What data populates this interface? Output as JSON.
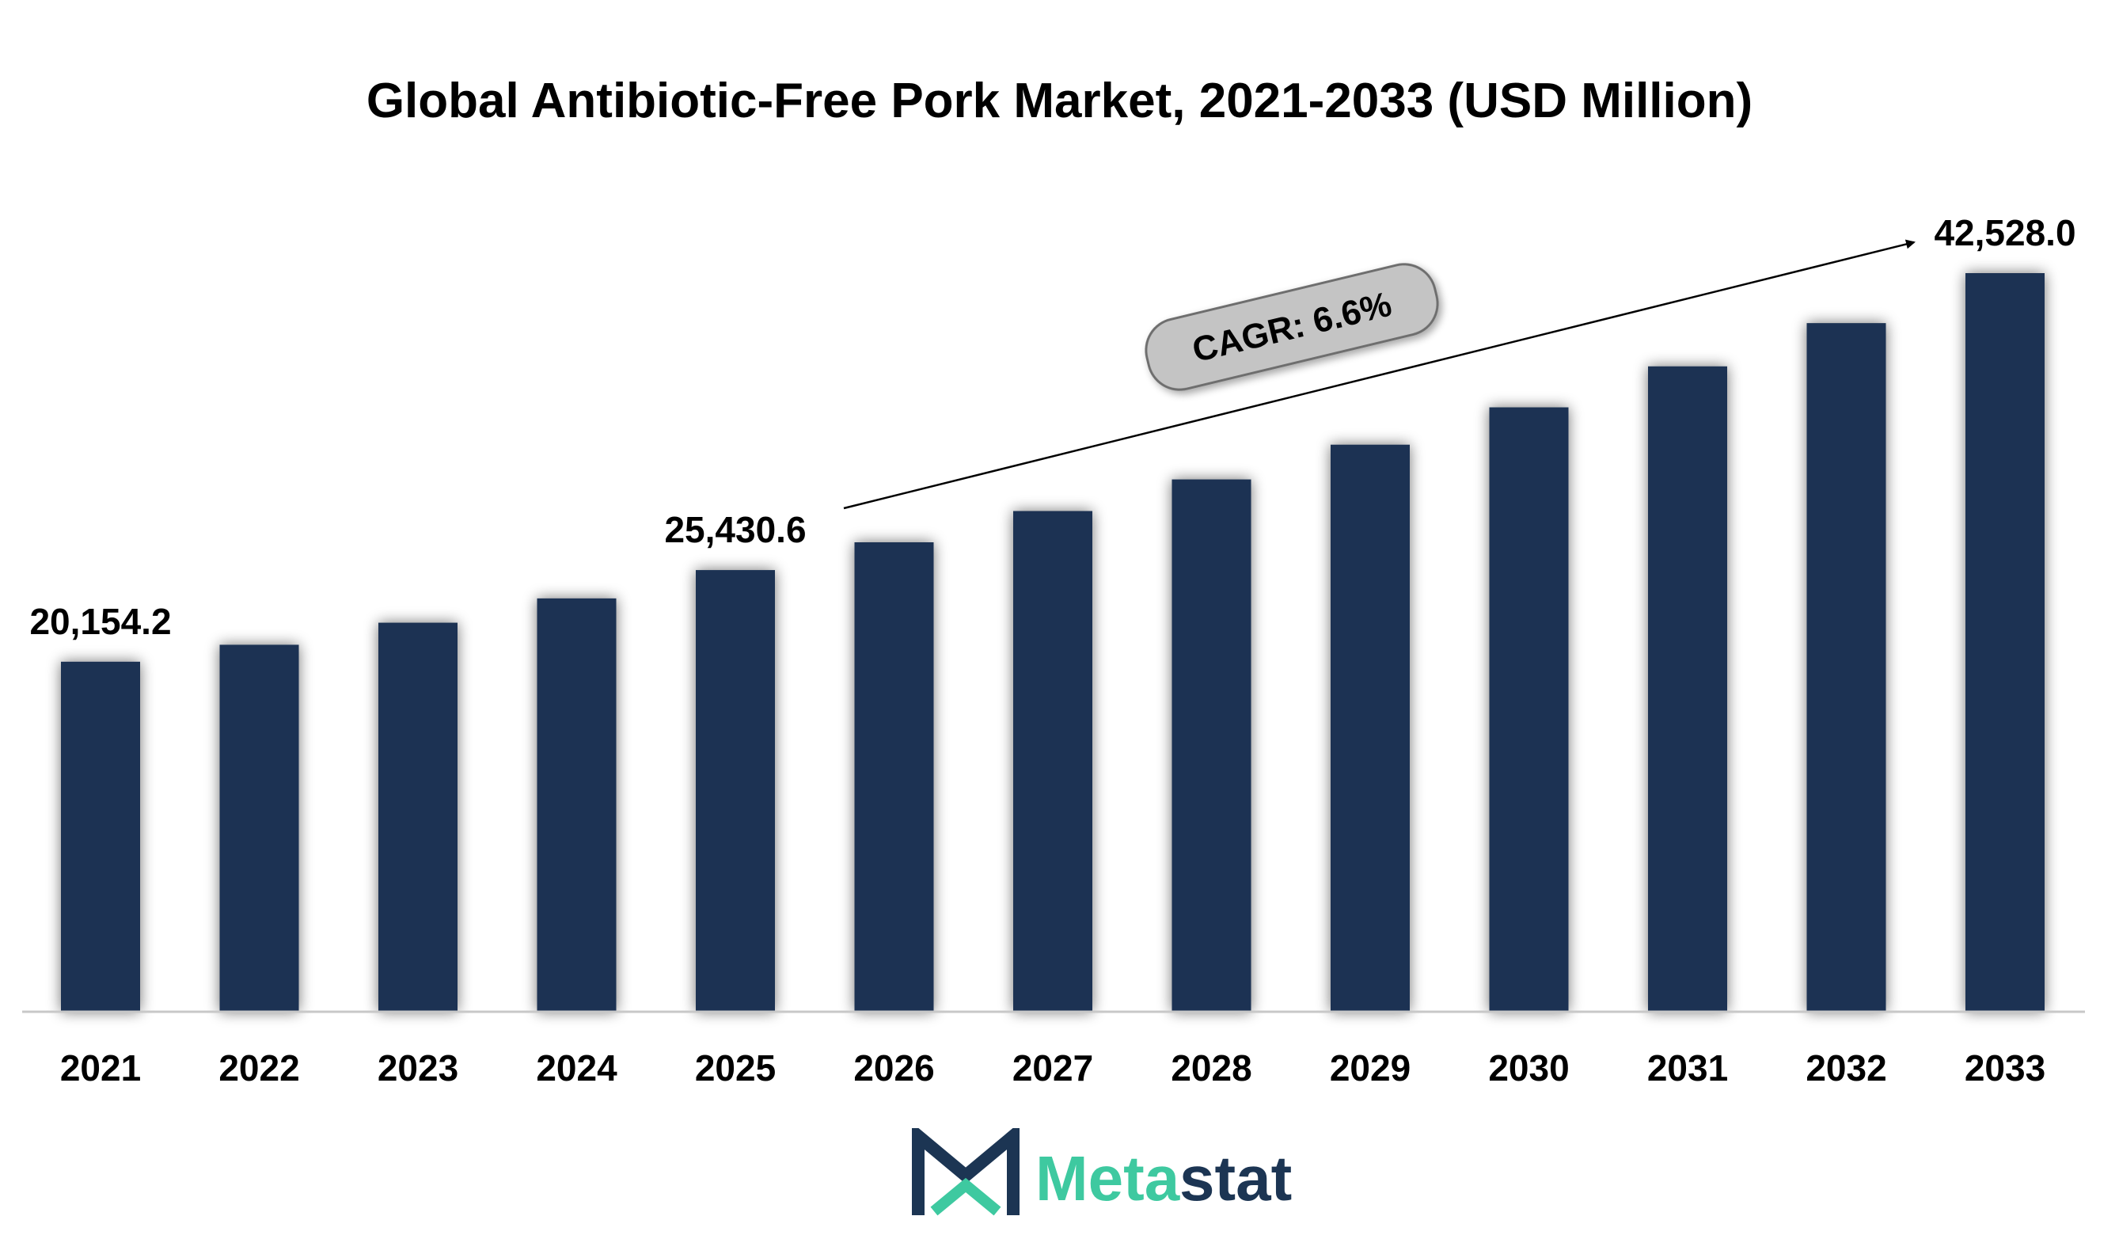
{
  "chart_data": {
    "type": "bar",
    "title": "Global Antibiotic-Free Pork Market, 2021-2033 (USD Million)",
    "categories": [
      "2021",
      "2022",
      "2023",
      "2024",
      "2025",
      "2026",
      "2027",
      "2028",
      "2029",
      "2030",
      "2031",
      "2032",
      "2033"
    ],
    "values": [
      20154.2,
      21130,
      22400,
      23800,
      25430.6,
      27030,
      28830,
      30650,
      32650,
      34800,
      37160,
      39650,
      42528.0
    ],
    "data_labels": [
      {
        "category": "2021",
        "text": "20,154.2"
      },
      {
        "category": "2025",
        "text": "25,430.6"
      },
      {
        "category": "2033",
        "text": "42,528.0"
      }
    ],
    "annotation": "CAGR: 6.6%",
    "xlabel": "",
    "ylabel": "",
    "ylim": [
      0,
      45000
    ],
    "grid": false,
    "legend": "none",
    "colors": {
      "bar": "#1b3352",
      "axis": "#c8c8c8",
      "badge": "#c4c4c4",
      "badge_border": "#6e6e6e"
    }
  },
  "logo": {
    "text_part1": "Meta",
    "text_part2": "stat",
    "color1": "#3ec9a0",
    "color2": "#1c3553"
  }
}
